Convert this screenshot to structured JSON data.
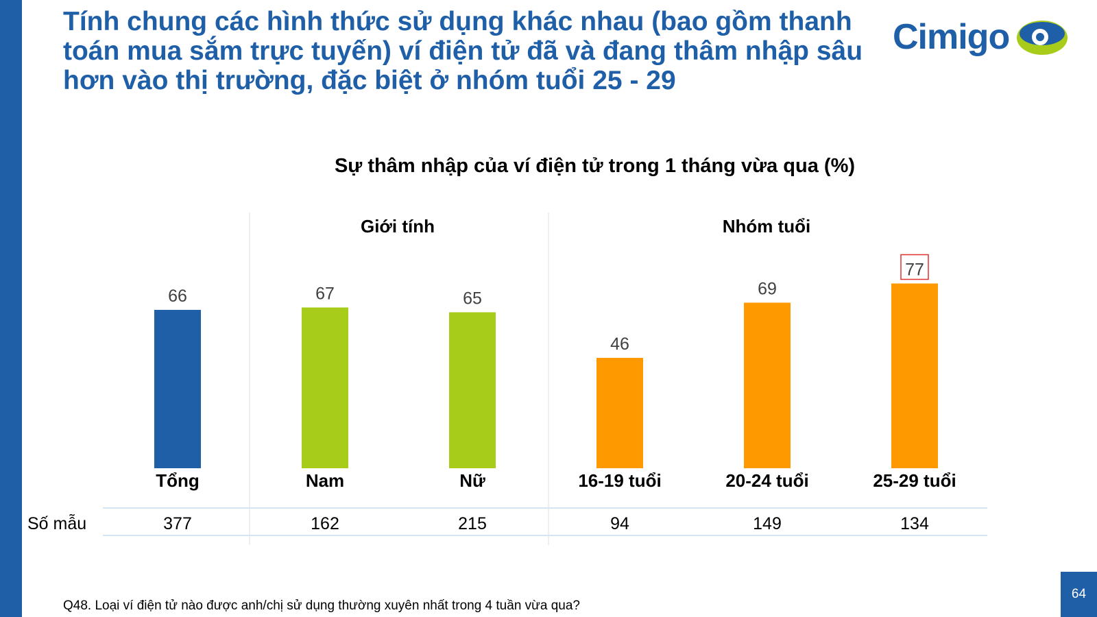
{
  "headline": "Tính chung các hình thức sử dụng khác nhau (bao gồm thanh toán mua sắm trực tuyến) ví điện tử đã và đang thâm nhập sâu hơn vào thị trường, đặc biệt ở nhóm tuổi 25 - 29",
  "logo": {
    "text": "Cimigo"
  },
  "colors": {
    "brand": "#1f5fa8",
    "total": "#1f5fa8",
    "gender": "#a8cc1a",
    "age": "#ff9900",
    "highlight": "#e03030"
  },
  "chart_data": {
    "type": "bar",
    "title": "Sự thâm nhập của ví điện tử trong 1 tháng vừa qua (%)",
    "groups": [
      "Giới tính",
      "Nhóm tuổi"
    ],
    "categories": [
      "Tổng",
      "Nam",
      "Nữ",
      "16-19 tuổi",
      "20-24 tuổi",
      "25-29 tuổi"
    ],
    "values": [
      66,
      67,
      65,
      46,
      69,
      77
    ],
    "highlighted": "25-29 tuổi",
    "sample": {
      "label": "Số mẫu",
      "values": [
        "377",
        "162",
        "215",
        "94",
        "149",
        "134"
      ]
    },
    "ylim": [
      0,
      100
    ]
  },
  "footnote": "Q48. Loại ví điện tử nào được anh/chị sử dụng thường xuyên nhất trong 4 tuần vừa qua?",
  "page_number": "64"
}
